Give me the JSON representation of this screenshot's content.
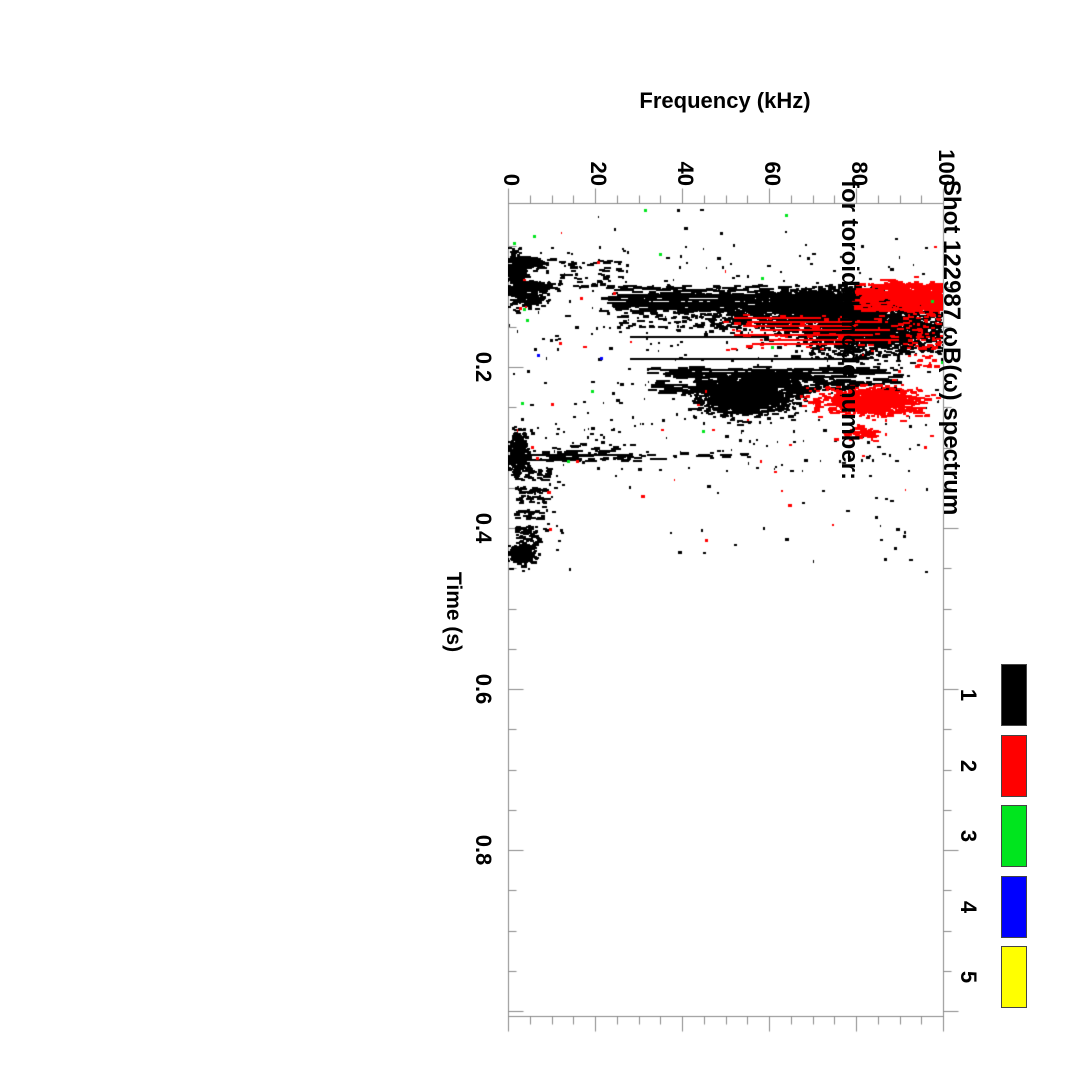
{
  "figure": {
    "background": "#ffffff",
    "title_line1": "Shot 122987 ωB(ω) spectrum",
    "title_line2": "for toroidal mode number:",
    "freq_axis": {
      "label": "Frequency (kHz)",
      "tick_labels": [
        "0",
        "20",
        "40",
        "60",
        "80",
        "100"
      ],
      "tick_values": [
        0,
        20,
        40,
        60,
        80,
        100
      ],
      "minor_step": 5,
      "range": [
        0,
        100
      ]
    },
    "time_axis": {
      "label": "Time (s)",
      "tick_labels": [
        "0.2",
        "0.4",
        "0.6",
        "0.8"
      ],
      "tick_values": [
        0.2,
        0.4,
        0.6,
        0.8
      ],
      "minor_step": 0.05,
      "range": [
        0,
        1.0
      ]
    },
    "legend": {
      "entries": [
        {
          "label": "1",
          "color": "#000000"
        },
        {
          "label": "2",
          "color": "#ff0000"
        },
        {
          "label": "3",
          "color": "#00e51e"
        },
        {
          "label": "4",
          "color": "#0000ff"
        },
        {
          "label": "5",
          "color": "#ffff00"
        }
      ]
    },
    "axis_line_color": "#888888"
  },
  "chart_data": {
    "type": "scatter",
    "title": "Shot 122987 ωB(ω) spectrum for toroidal mode number:",
    "xlabel": "Time (s)",
    "ylabel": "Frequency (kHz)",
    "xlim": [
      0,
      1.0
    ],
    "ylim": [
      0,
      100
    ],
    "grid": false,
    "legend_position": "right",
    "orientation": "whole plot rotated 90° clockwise: time runs top-to-bottom on left axis, frequency runs left-to-right on top axis",
    "mode_colors": {
      "1": "#000000",
      "2": "#ff0000",
      "3": "#00e51e",
      "4": "#0000ff",
      "5": "#ffff00"
    },
    "clusters": [
      {
        "mode": 1,
        "shape": "gauss",
        "f": 2.2,
        "t": 0.085,
        "sf": 1.0,
        "st": 0.012,
        "n": 350,
        "dw": [
          2,
          5
        ]
      },
      {
        "mode": 1,
        "shape": "gauss",
        "f": 5.0,
        "t": 0.07,
        "sf": 2.0,
        "st": 0.004,
        "n": 130,
        "dw": [
          2,
          5
        ]
      },
      {
        "mode": 1,
        "shape": "gauss",
        "f": 5.5,
        "t": 0.101,
        "sf": 2.2,
        "st": 0.004,
        "n": 130,
        "dw": [
          2,
          5
        ]
      },
      {
        "mode": 1,
        "shape": "uniform",
        "f": [
          8,
          28
        ],
        "t": [
          0.066,
          0.102
        ],
        "n": 60,
        "dw": [
          2,
          8
        ]
      },
      {
        "mode": 1,
        "shape": "gauss",
        "f": 5.0,
        "t": 0.115,
        "sf": 2.0,
        "st": 0.007,
        "n": 150,
        "dw": [
          2,
          5
        ]
      },
      {
        "mode": 1,
        "shape": "uniform",
        "f": [
          22,
          88
        ],
        "t": [
          0.099,
          0.131
        ],
        "n": 260,
        "dw": [
          3,
          16
        ]
      },
      {
        "mode": 1,
        "shape": "hline",
        "t": 0.1105,
        "f": [
          25,
          80
        ],
        "h": 2
      },
      {
        "mode": 1,
        "shape": "hline",
        "t": 0.1135,
        "f": [
          23,
          72
        ],
        "h": 2
      },
      {
        "mode": 1,
        "shape": "hline",
        "t": 0.117,
        "f": [
          24,
          83
        ],
        "h": 2
      },
      {
        "mode": 1,
        "shape": "hline",
        "t": 0.1205,
        "f": [
          26,
          62
        ],
        "h": 2
      },
      {
        "mode": 1,
        "shape": "hline",
        "t": 0.124,
        "f": [
          24,
          55
        ],
        "h": 3
      },
      {
        "mode": 1,
        "shape": "hline",
        "t": 0.128,
        "f": [
          30,
          52
        ],
        "h": 2
      },
      {
        "mode": 1,
        "shape": "uniform",
        "f": [
          25,
          52
        ],
        "t": [
          0.125,
          0.152
        ],
        "n": 90,
        "dw": [
          2,
          8
        ]
      },
      {
        "mode": 1,
        "shape": "gauss",
        "f": 70,
        "t": 0.118,
        "sf": 9,
        "st": 0.007,
        "n": 900,
        "dw": [
          2,
          6
        ]
      },
      {
        "mode": 1,
        "shape": "gauss",
        "f": 82,
        "t": 0.15,
        "sf": 7.5,
        "st": 0.016,
        "n": 2400,
        "dw": [
          2,
          6
        ]
      },
      {
        "mode": 1,
        "shape": "gauss",
        "f": 62,
        "t": 0.137,
        "sf": 10,
        "st": 0.01,
        "n": 650,
        "dw": [
          2,
          6
        ]
      },
      {
        "mode": 1,
        "shape": "uniform",
        "f": [
          90,
          100
        ],
        "t": [
          0.115,
          0.185
        ],
        "n": 170,
        "dw": [
          2,
          7
        ]
      },
      {
        "mode": 1,
        "shape": "hline",
        "t": 0.163,
        "f": [
          28,
          60
        ],
        "h": 2
      },
      {
        "mode": 1,
        "shape": "hline",
        "t": 0.19,
        "f": [
          28,
          83
        ],
        "h": 2
      },
      {
        "mode": 1,
        "shape": "uniform",
        "f": [
          33,
          90
        ],
        "t": [
          0.2,
          0.233
        ],
        "n": 240,
        "dw": [
          3,
          20
        ]
      },
      {
        "mode": 1,
        "shape": "hline",
        "t": 0.2035,
        "f": [
          35,
          85
        ],
        "h": 2
      },
      {
        "mode": 1,
        "shape": "hline",
        "t": 0.2075,
        "f": [
          40,
          88
        ],
        "h": 2
      },
      {
        "mode": 1,
        "shape": "hline",
        "t": 0.213,
        "f": [
          38,
          80
        ],
        "h": 2
      },
      {
        "mode": 1,
        "shape": "gauss",
        "f": 60,
        "t": 0.222,
        "sf": 8,
        "st": 0.007,
        "n": 320,
        "dw": [
          2,
          6
        ]
      },
      {
        "mode": 1,
        "shape": "gauss",
        "f": 55,
        "t": 0.238,
        "sf": 5,
        "st": 0.011,
        "n": 1300,
        "dw": [
          2,
          6
        ]
      },
      {
        "mode": 1,
        "shape": "gauss",
        "f": 2.5,
        "t": 0.305,
        "sf": 1.1,
        "st": 0.012,
        "n": 420,
        "dw": [
          2,
          5
        ]
      },
      {
        "mode": 1,
        "shape": "uniform",
        "f": [
          8,
          30
        ],
        "t": [
          0.296,
          0.318
        ],
        "n": 70,
        "dw": [
          3,
          10
        ]
      },
      {
        "mode": 1,
        "shape": "hline",
        "t": 0.3095,
        "f": [
          3,
          28
        ],
        "h": 2
      },
      {
        "mode": 1,
        "shape": "hline",
        "t": 0.316,
        "f": [
          2,
          17
        ],
        "h": 2
      },
      {
        "mode": 1,
        "shape": "uniform",
        "f": [
          18,
          55
        ],
        "t": [
          0.306,
          0.315
        ],
        "n": 28,
        "dw": [
          3,
          12
        ]
      },
      {
        "mode": 1,
        "shape": "uniform",
        "f": [
          1.5,
          10
        ],
        "t": [
          0.324,
          0.341
        ],
        "n": 50,
        "dw": [
          2,
          7
        ]
      },
      {
        "mode": 1,
        "shape": "uniform",
        "f": [
          2,
          9
        ],
        "t": [
          0.349,
          0.358
        ],
        "n": 30,
        "dw": [
          2,
          7
        ]
      },
      {
        "mode": 1,
        "shape": "uniform",
        "f": [
          2.5,
          9
        ],
        "t": [
          0.36,
          0.369
        ],
        "n": 25,
        "dw": [
          2,
          7
        ]
      },
      {
        "mode": 1,
        "shape": "uniform",
        "f": [
          2,
          8
        ],
        "t": [
          0.377,
          0.389
        ],
        "n": 30,
        "dw": [
          2,
          7
        ]
      },
      {
        "mode": 1,
        "shape": "uniform",
        "f": [
          2,
          7.5
        ],
        "t": [
          0.398,
          0.425
        ],
        "n": 70,
        "dw": [
          2,
          6
        ]
      },
      {
        "mode": 1,
        "shape": "gauss",
        "f": 3.2,
        "t": 0.434,
        "sf": 1.7,
        "st": 0.005,
        "n": 230,
        "dw": [
          2,
          6
        ]
      },
      {
        "mode": 1,
        "shape": "uniform",
        "f": [
          7,
          13
        ],
        "t": [
          0.335,
          0.43
        ],
        "n": 18,
        "dw": [
          2,
          5
        ]
      },
      {
        "mode": 1,
        "shape": "uniform",
        "f": [
          0,
          100
        ],
        "t": [
          0.05,
          0.33
        ],
        "n": 280,
        "dw": [
          1,
          4
        ]
      },
      {
        "mode": 1,
        "shape": "uniform",
        "f": [
          0,
          100
        ],
        "t": [
          0.005,
          0.46
        ],
        "n": 120,
        "dw": [
          1,
          4
        ]
      },
      {
        "mode": 2,
        "shape": "uniform",
        "f": [
          80,
          100
        ],
        "t": [
          0.097,
          0.13
        ],
        "n": 380,
        "dw": [
          2,
          12
        ]
      },
      {
        "mode": 2,
        "shape": "gauss",
        "f": 93,
        "t": 0.112,
        "sf": 4,
        "st": 0.009,
        "n": 260,
        "dw": [
          2,
          8
        ]
      },
      {
        "mode": 2,
        "shape": "hline",
        "t": 0.139,
        "f": [
          52,
          72
        ],
        "h": 2
      },
      {
        "mode": 2,
        "shape": "hline",
        "t": 0.144,
        "f": [
          55,
          86
        ],
        "h": 2
      },
      {
        "mode": 2,
        "shape": "hline",
        "t": 0.149,
        "f": [
          54,
          80
        ],
        "h": 2
      },
      {
        "mode": 2,
        "shape": "hline",
        "t": 0.154,
        "f": [
          58,
          88
        ],
        "h": 2
      },
      {
        "mode": 2,
        "shape": "hline",
        "t": 0.16,
        "f": [
          52,
          84
        ],
        "h": 2
      },
      {
        "mode": 2,
        "shape": "hline",
        "t": 0.166,
        "f": [
          60,
          90
        ],
        "h": 2
      },
      {
        "mode": 2,
        "shape": "hline",
        "t": 0.172,
        "f": [
          56,
          78
        ],
        "h": 2
      },
      {
        "mode": 2,
        "shape": "uniform",
        "f": [
          50,
          95
        ],
        "t": [
          0.135,
          0.18
        ],
        "n": 70,
        "dw": [
          2,
          8
        ]
      },
      {
        "mode": 2,
        "shape": "uniform",
        "f": [
          92,
          100
        ],
        "t": [
          0.13,
          0.2
        ],
        "n": 80,
        "dw": [
          2,
          6
        ]
      },
      {
        "mode": 2,
        "shape": "gauss",
        "f": 83,
        "t": 0.243,
        "sf": 5,
        "st": 0.008,
        "n": 800,
        "dw": [
          2,
          7
        ]
      },
      {
        "mode": 2,
        "shape": "uniform",
        "f": [
          75,
          97
        ],
        "t": [
          0.227,
          0.262
        ],
        "n": 110,
        "dw": [
          2,
          7
        ]
      },
      {
        "mode": 2,
        "shape": "gauss",
        "f": 81.5,
        "t": 0.282,
        "sf": 2.5,
        "st": 0.0045,
        "n": 70,
        "dw": [
          2,
          6
        ]
      },
      {
        "mode": 2,
        "shape": "uniform",
        "f": [
          0,
          100
        ],
        "t": [
          0.03,
          0.42
        ],
        "n": 35,
        "dw": [
          1,
          4
        ]
      },
      {
        "mode": 2,
        "shape": "points",
        "pts": [
          [
            16.8,
            0.115
          ],
          [
            20.7,
            0.07
          ],
          [
            2.8,
            0.127
          ],
          [
            5.7,
            0.3
          ],
          [
            6.7,
            0.314
          ],
          [
            15.9,
            0.318
          ],
          [
            9.7,
            0.402
          ],
          [
            10.3,
            0.247
          ],
          [
            96,
            0.3
          ],
          [
            90,
            0.205
          ]
        ]
      },
      {
        "mode": 3,
        "shape": "points",
        "pts": [
          [
            31.5,
            0.005
          ],
          [
            1.5,
            0.046
          ],
          [
            6,
            0.038
          ],
          [
            58.6,
            0.09
          ],
          [
            97.5,
            0.119
          ],
          [
            60.7,
            0.176
          ],
          [
            19.5,
            0.23
          ],
          [
            3.4,
            0.245
          ],
          [
            4.4,
            0.142
          ],
          [
            3.9,
            0.129
          ],
          [
            14,
            0.318
          ],
          [
            35,
            0.06
          ],
          [
            99.8,
            0.195
          ],
          [
            45,
            0.28
          ],
          [
            64,
            0.012
          ]
        ]
      },
      {
        "mode": 4,
        "shape": "points",
        "pts": [
          [
            21.6,
            0.189
          ],
          [
            6.9,
            0.186
          ]
        ]
      }
    ],
    "notes": "Modes 1 (black) and 2 (red) dominate; mode 3 (green) appears as isolated specks, mode 4 (blue) barely visible, mode 5 (yellow) not visible in plot area. Activity confined to t ≈ 0.0–0.46 s."
  }
}
